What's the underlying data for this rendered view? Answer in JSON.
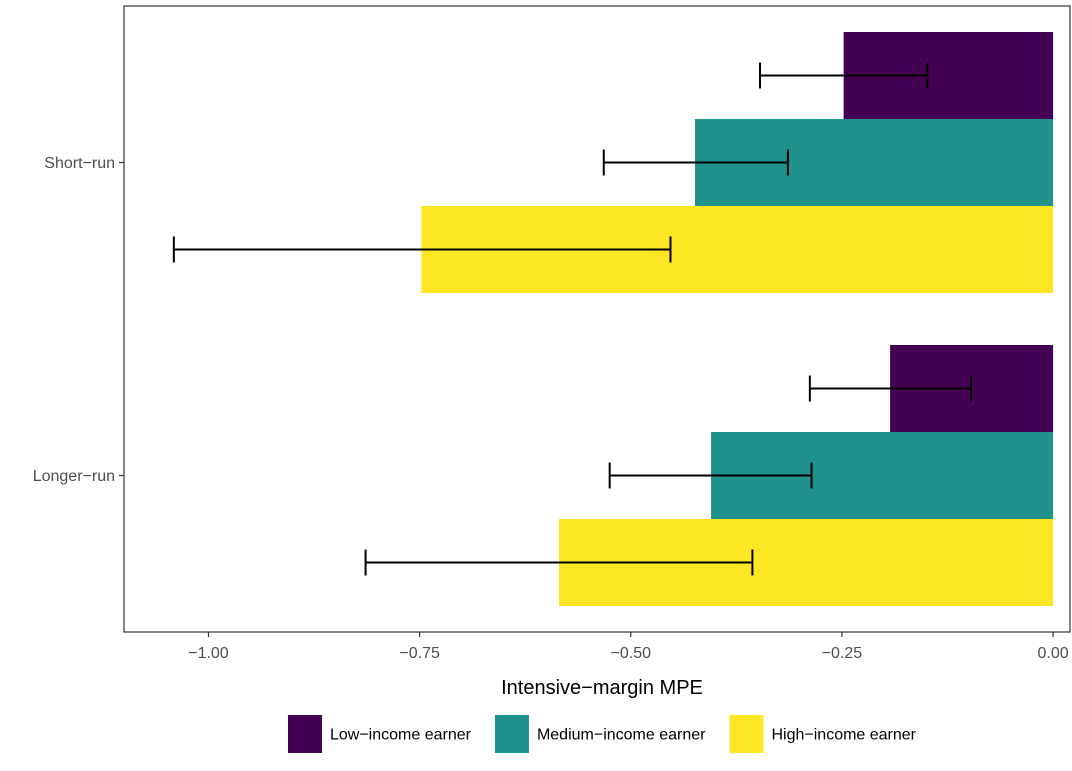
{
  "chart_data": {
    "type": "bar",
    "orientation": "horizontal",
    "title": "",
    "xlabel": "Intensive−margin MPE",
    "ylabel": "",
    "categories": [
      "Short−run",
      "Longer−run"
    ],
    "xlim": [
      -1.1,
      0.02
    ],
    "xticks": [
      -1.0,
      -0.75,
      -0.5,
      -0.25,
      0.0
    ],
    "xtick_labels": [
      "−1.00",
      "−0.75",
      "−0.50",
      "−0.25",
      "0.00"
    ],
    "grid": false,
    "legend_position": "bottom",
    "series": [
      {
        "name": "Low−income earner",
        "color": "#440154",
        "values": [
          -0.248,
          -0.193
        ],
        "err_low": [
          -0.347,
          -0.288
        ],
        "err_high": [
          -0.149,
          -0.097
        ]
      },
      {
        "name": "Medium−income earner",
        "color": "#21918C",
        "values": [
          -0.424,
          -0.405
        ],
        "err_low": [
          -0.532,
          -0.525
        ],
        "err_high": [
          -0.314,
          -0.286
        ]
      },
      {
        "name": "High−income earner",
        "color": "#FDE725",
        "values": [
          -0.748,
          -0.585
        ],
        "err_low": [
          -1.041,
          -0.814
        ],
        "err_high": [
          -0.453,
          -0.356
        ]
      }
    ]
  }
}
